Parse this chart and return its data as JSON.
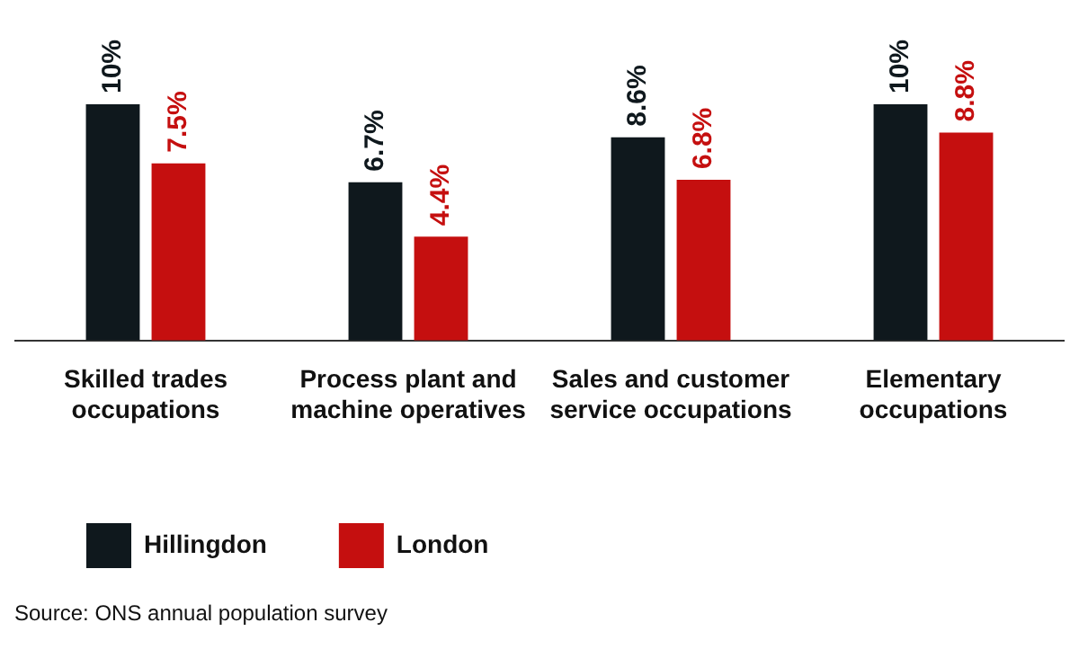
{
  "chart_data": {
    "type": "bar",
    "categories": [
      "Skilled trades occupations",
      "Process plant and machine operatives",
      "Sales and customer service occupations",
      "Elementary occupations"
    ],
    "series": [
      {
        "name": "Hillingdon",
        "color": "#0f181d",
        "values": [
          10,
          6.7,
          8.6,
          10
        ],
        "value_labels": [
          "10%",
          "6.7%",
          "8.6%",
          "10%"
        ]
      },
      {
        "name": "London",
        "color": "#c50f0f",
        "values": [
          7.5,
          4.4,
          6.8,
          8.8
        ],
        "value_labels": [
          "7.5%",
          "4.4%",
          "6.8%",
          "8.8%"
        ]
      }
    ],
    "legend": "bottom left",
    "grid": false,
    "annotations": [
      "Source: ONS annual population survey"
    ]
  }
}
